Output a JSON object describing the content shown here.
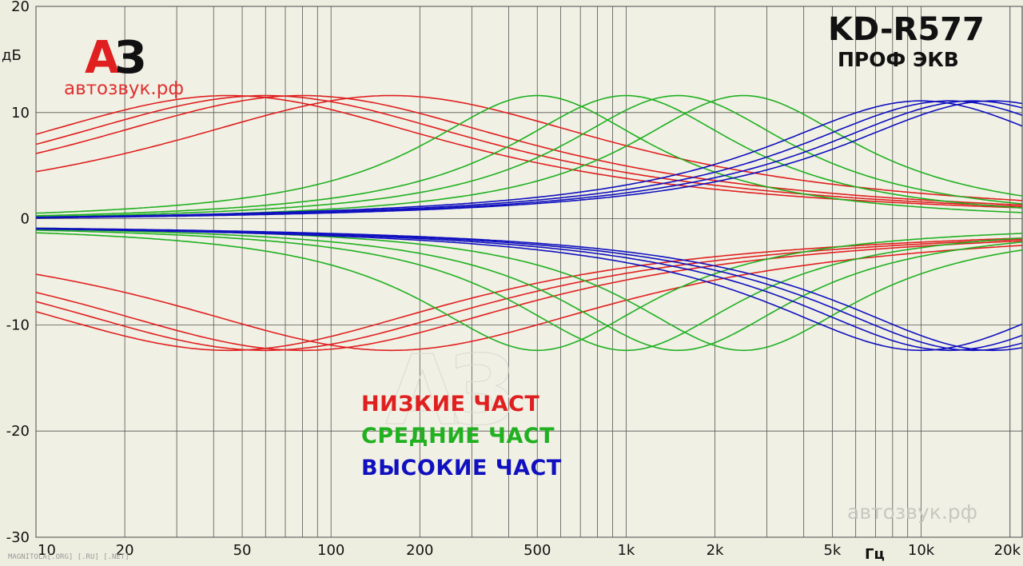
{
  "header": {
    "model": "KD-R577",
    "subtitle": "ПРОФ ЭКВ",
    "logo_a": "А",
    "logo_z": "З",
    "site": "автозвук.рф",
    "watermark_site": "автозвук.рф",
    "watermark_big": "АЗ",
    "footer": "MAGNITOLA[.ORG] [.RU] [.NET]"
  },
  "legend": [
    {
      "label": "НИЗКИЕ ЧАСТ",
      "color": "#e02020"
    },
    {
      "label": "СРЕДНИЕ ЧАСТ",
      "color": "#20b020"
    },
    {
      "label": "ВЫСОКИЕ ЧАСТ",
      "color": "#1010c0"
    }
  ],
  "chart_data": {
    "type": "line",
    "xscale": "log",
    "xlim": [
      10,
      22000
    ],
    "ylim": [
      -30,
      20
    ],
    "ylabel": "дБ",
    "xlabel": "Гц",
    "grid": true,
    "x_ticks": [
      {
        "value": 10,
        "label": "10"
      },
      {
        "value": 20,
        "label": "20"
      },
      {
        "value": 50,
        "label": "50"
      },
      {
        "value": 100,
        "label": "100"
      },
      {
        "value": 200,
        "label": "200"
      },
      {
        "value": 500,
        "label": "500"
      },
      {
        "value": 1000,
        "label": "1k"
      },
      {
        "value": 2000,
        "label": "2k"
      },
      {
        "value": 5000,
        "label": "5k"
      },
      {
        "value": 10000,
        "label": "10k"
      },
      {
        "value": 20000,
        "label": "20k"
      }
    ],
    "y_ticks": [
      {
        "value": 20,
        "label": "20"
      },
      {
        "value": 10,
        "label": "10"
      },
      {
        "value": 0,
        "label": "0"
      },
      {
        "value": -10,
        "label": "-10"
      },
      {
        "value": -20,
        "label": "-20"
      },
      {
        "value": -30,
        "label": "-30"
      }
    ],
    "series": [
      {
        "group": "bass",
        "color": "#e02020",
        "center_hz": 45,
        "gain_db": 12
      },
      {
        "group": "bass",
        "color": "#e02020",
        "center_hz": 60,
        "gain_db": 12
      },
      {
        "group": "bass",
        "color": "#e02020",
        "center_hz": 80,
        "gain_db": 12
      },
      {
        "group": "bass",
        "color": "#e02020",
        "center_hz": 160,
        "gain_db": 12
      },
      {
        "group": "bass",
        "color": "#e02020",
        "center_hz": 45,
        "gain_db": -12
      },
      {
        "group": "bass",
        "color": "#e02020",
        "center_hz": 60,
        "gain_db": -12
      },
      {
        "group": "bass",
        "color": "#e02020",
        "center_hz": 80,
        "gain_db": -12
      },
      {
        "group": "bass",
        "color": "#e02020",
        "center_hz": 160,
        "gain_db": -12
      },
      {
        "group": "mid",
        "color": "#20b020",
        "center_hz": 500,
        "gain_db": 12
      },
      {
        "group": "mid",
        "color": "#20b020",
        "center_hz": 1000,
        "gain_db": 12
      },
      {
        "group": "mid",
        "color": "#20b020",
        "center_hz": 1500,
        "gain_db": 12
      },
      {
        "group": "mid",
        "color": "#20b020",
        "center_hz": 2500,
        "gain_db": 12
      },
      {
        "group": "mid",
        "color": "#20b020",
        "center_hz": 500,
        "gain_db": -12
      },
      {
        "group": "mid",
        "color": "#20b020",
        "center_hz": 1000,
        "gain_db": -12
      },
      {
        "group": "mid",
        "color": "#20b020",
        "center_hz": 1500,
        "gain_db": -12
      },
      {
        "group": "mid",
        "color": "#20b020",
        "center_hz": 2500,
        "gain_db": -12
      },
      {
        "group": "treble",
        "color": "#1010c0",
        "center_hz": 10000,
        "gain_db": 11.5
      },
      {
        "group": "treble",
        "color": "#1010c0",
        "center_hz": 12500,
        "gain_db": 11.5
      },
      {
        "group": "treble",
        "color": "#1010c0",
        "center_hz": 15000,
        "gain_db": 11.5
      },
      {
        "group": "treble",
        "color": "#1010c0",
        "center_hz": 17500,
        "gain_db": 11.5
      },
      {
        "group": "treble",
        "color": "#1010c0",
        "center_hz": 10000,
        "gain_db": -12
      },
      {
        "group": "treble",
        "color": "#1010c0",
        "center_hz": 12500,
        "gain_db": -12
      },
      {
        "group": "treble",
        "color": "#1010c0",
        "center_hz": 15000,
        "gain_db": -12
      },
      {
        "group": "treble",
        "color": "#1010c0",
        "center_hz": 17500,
        "gain_db": -12
      }
    ]
  }
}
